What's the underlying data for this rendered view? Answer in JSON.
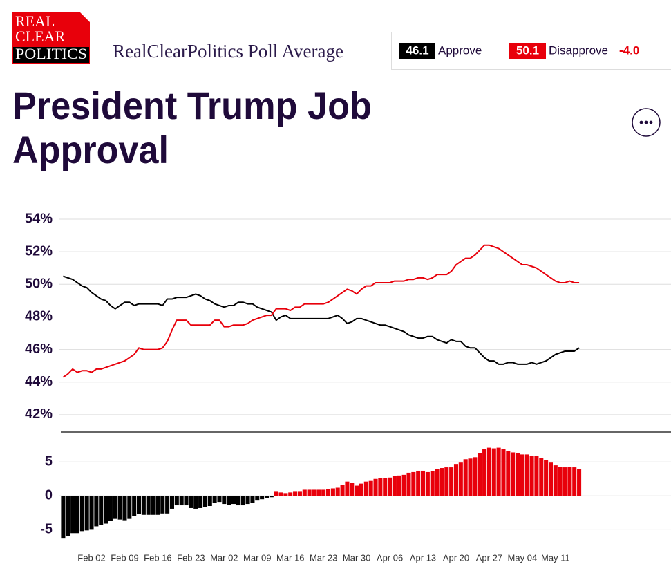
{
  "header": {
    "logo": [
      "REAL",
      "CLEAR",
      "POLITICS"
    ],
    "subtitle": "RealClearPolitics Poll Average",
    "summary": {
      "approve_value": "46.1",
      "approve_label": "Approve",
      "disapprove_value": "50.1",
      "disapprove_label": "Disapprove",
      "spread": "-4.0"
    }
  },
  "title": [
    "President Trump Job",
    "Approval"
  ],
  "chart_data": [
    {
      "type": "line",
      "ylim": [
        41,
        54
      ],
      "yticks": [
        {
          "value": 42,
          "label": "42%"
        },
        {
          "value": 44,
          "label": "44%"
        },
        {
          "value": 46,
          "label": "46%"
        },
        {
          "value": 48,
          "label": "48%"
        },
        {
          "value": 50,
          "label": "50%"
        },
        {
          "value": 52,
          "label": "52%"
        },
        {
          "value": 54,
          "label": "54%"
        }
      ],
      "grid": true,
      "series": [
        {
          "name": "Approve",
          "color": "#000000",
          "values": [
            50.5,
            50.4,
            50.3,
            50.1,
            49.9,
            49.8,
            49.5,
            49.3,
            49.1,
            49.0,
            48.7,
            48.5,
            48.7,
            48.9,
            48.9,
            48.7,
            48.8,
            48.8,
            48.8,
            48.8,
            48.8,
            48.7,
            49.1,
            49.1,
            49.2,
            49.2,
            49.2,
            49.3,
            49.4,
            49.3,
            49.1,
            49.0,
            48.8,
            48.7,
            48.6,
            48.7,
            48.7,
            48.9,
            48.9,
            48.8,
            48.8,
            48.6,
            48.5,
            48.4,
            48.3,
            47.8,
            48.0,
            48.1,
            47.9,
            47.9,
            47.9,
            47.9,
            47.9,
            47.9,
            47.9,
            47.9,
            47.9,
            48.0,
            48.1,
            47.9,
            47.6,
            47.7,
            47.9,
            47.9,
            47.8,
            47.7,
            47.6,
            47.5,
            47.5,
            47.4,
            47.3,
            47.2,
            47.1,
            46.9,
            46.8,
            46.7,
            46.7,
            46.8,
            46.8,
            46.6,
            46.5,
            46.4,
            46.6,
            46.5,
            46.5,
            46.2,
            46.1,
            46.1,
            45.8,
            45.5,
            45.3,
            45.3,
            45.1,
            45.1,
            45.2,
            45.2,
            45.1,
            45.1,
            45.1,
            45.2,
            45.1,
            45.2,
            45.3,
            45.5,
            45.7,
            45.8,
            45.9,
            45.9,
            45.9,
            46.1
          ]
        },
        {
          "name": "Disapprove",
          "color": "#e8000b",
          "values": [
            44.3,
            44.5,
            44.8,
            44.6,
            44.7,
            44.7,
            44.6,
            44.8,
            44.8,
            44.9,
            45.0,
            45.1,
            45.2,
            45.3,
            45.5,
            45.7,
            46.1,
            46.0,
            46.0,
            46.0,
            46.0,
            46.1,
            46.5,
            47.2,
            47.8,
            47.8,
            47.8,
            47.5,
            47.5,
            47.5,
            47.5,
            47.5,
            47.8,
            47.8,
            47.4,
            47.4,
            47.5,
            47.5,
            47.5,
            47.6,
            47.8,
            47.9,
            48.0,
            48.1,
            48.1,
            48.5,
            48.5,
            48.5,
            48.4,
            48.6,
            48.6,
            48.8,
            48.8,
            48.8,
            48.8,
            48.8,
            48.9,
            49.1,
            49.3,
            49.5,
            49.7,
            49.6,
            49.4,
            49.7,
            49.9,
            49.9,
            50.1,
            50.1,
            50.1,
            50.1,
            50.2,
            50.2,
            50.2,
            50.3,
            50.3,
            50.4,
            50.4,
            50.3,
            50.4,
            50.6,
            50.6,
            50.6,
            50.8,
            51.2,
            51.4,
            51.6,
            51.6,
            51.8,
            52.1,
            52.4,
            52.4,
            52.3,
            52.2,
            52.0,
            51.8,
            51.6,
            51.4,
            51.2,
            51.2,
            51.1,
            51.0,
            50.8,
            50.6,
            50.4,
            50.2,
            50.1,
            50.1,
            50.2,
            50.1,
            50.1
          ]
        }
      ]
    },
    {
      "type": "bar",
      "ylim": [
        -7,
        9.3
      ],
      "yticks": [
        -5,
        0,
        5
      ],
      "grid": true,
      "positive_color": "#e8000b",
      "negative_color": "#000000",
      "categories": [
        null,
        null,
        null,
        null,
        null,
        null,
        "Feb 02",
        null,
        null,
        null,
        null,
        null,
        null,
        "Feb 09",
        null,
        null,
        null,
        null,
        null,
        null,
        "Feb 16",
        null,
        null,
        null,
        null,
        null,
        null,
        "Feb 23",
        null,
        null,
        null,
        null,
        null,
        null,
        "Mar 02",
        null,
        null,
        null,
        null,
        null,
        null,
        "Mar 09",
        null,
        null,
        null,
        null,
        null,
        null,
        "Mar 16",
        null,
        null,
        null,
        null,
        null,
        null,
        "Mar 23",
        null,
        null,
        null,
        null,
        null,
        null,
        "Mar 30",
        null,
        null,
        null,
        null,
        null,
        null,
        "Apr 06",
        null,
        null,
        null,
        null,
        null,
        null,
        "Apr 13",
        null,
        null,
        null,
        null,
        null,
        null,
        "Apr 20",
        null,
        null,
        null,
        null,
        null,
        null,
        "Apr 27",
        null,
        null,
        null,
        null,
        null,
        null,
        "May 04",
        null,
        null,
        null,
        null,
        null,
        null,
        "May 11",
        null,
        null,
        null,
        null,
        null
      ],
      "values": [
        -6.2,
        -5.9,
        -5.5,
        -5.5,
        -5.2,
        -5.1,
        -4.9,
        -4.5,
        -4.3,
        -4.1,
        -3.7,
        -3.4,
        -3.5,
        -3.6,
        -3.4,
        -3.0,
        -2.7,
        -2.8,
        -2.8,
        -2.8,
        -2.8,
        -2.6,
        -2.6,
        -1.9,
        -1.4,
        -1.4,
        -1.4,
        -1.8,
        -1.9,
        -1.8,
        -1.6,
        -1.5,
        -1.0,
        -0.9,
        -1.2,
        -1.3,
        -1.2,
        -1.4,
        -1.4,
        -1.2,
        -1.0,
        -0.7,
        -0.5,
        -0.3,
        -0.2,
        0.7,
        0.5,
        0.4,
        0.5,
        0.7,
        0.7,
        0.9,
        0.9,
        0.9,
        0.9,
        0.9,
        1.0,
        1.1,
        1.2,
        1.6,
        2.1,
        1.9,
        1.5,
        1.8,
        2.1,
        2.2,
        2.5,
        2.6,
        2.6,
        2.7,
        2.9,
        3.0,
        3.1,
        3.4,
        3.5,
        3.7,
        3.7,
        3.5,
        3.6,
        4.0,
        4.1,
        4.2,
        4.2,
        4.7,
        4.9,
        5.4,
        5.5,
        5.7,
        6.3,
        6.9,
        7.1,
        7.0,
        7.1,
        6.9,
        6.6,
        6.4,
        6.3,
        6.1,
        6.1,
        5.9,
        5.9,
        5.6,
        5.3,
        4.9,
        4.5,
        4.3,
        4.2,
        4.3,
        4.2,
        4.0
      ]
    }
  ]
}
